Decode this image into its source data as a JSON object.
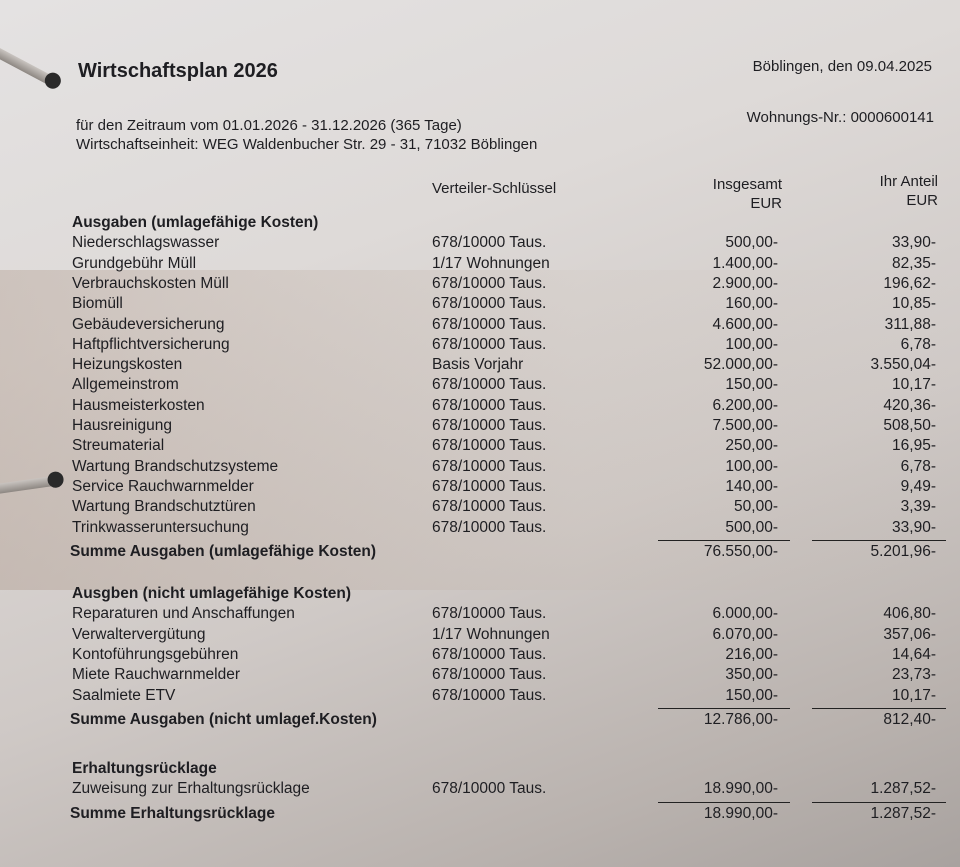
{
  "header": {
    "title": "Wirtschaftsplan 2026",
    "place_date": "Böblingen, den 09.04.2025",
    "period": "für den Zeitraum vom 01.01.2026 - 31.12.2026 (365 Tage)",
    "unit": "Wirtschaftseinheit: WEG Waldenbucher Str. 29 - 31, 71032 Böblingen",
    "flat_no": "Wohnungs-Nr.: 0000600141"
  },
  "columns": {
    "key": "Verteiler-Schlüssel",
    "total": "Insgesamt\nEUR",
    "share": "Ihr Anteil\nEUR"
  },
  "sections": [
    {
      "title": "Ausgaben (umlagefähige Kosten)",
      "rows": [
        {
          "label": "Niederschlagswasser",
          "key": "678/10000 Taus.",
          "total": "500,00-",
          "share": "33,90-"
        },
        {
          "label": "Grundgebühr Müll",
          "key": "1/17 Wohnungen",
          "total": "1.400,00-",
          "share": "82,35-"
        },
        {
          "label": "Verbrauchskosten Müll",
          "key": "678/10000 Taus.",
          "total": "2.900,00-",
          "share": "196,62-"
        },
        {
          "label": "Biomüll",
          "key": "678/10000 Taus.",
          "total": "160,00-",
          "share": "10,85-"
        },
        {
          "label": "Gebäudeversicherung",
          "key": "678/10000 Taus.",
          "total": "4.600,00-",
          "share": "311,88-"
        },
        {
          "label": "Haftpflichtversicherung",
          "key": "678/10000 Taus.",
          "total": "100,00-",
          "share": "6,78-"
        },
        {
          "label": "Heizungskosten",
          "key": "Basis Vorjahr",
          "total": "52.000,00-",
          "share": "3.550,04-"
        },
        {
          "label": "Allgemeinstrom",
          "key": "678/10000 Taus.",
          "total": "150,00-",
          "share": "10,17-"
        },
        {
          "label": "Hausmeisterkosten",
          "key": "678/10000 Taus.",
          "total": "6.200,00-",
          "share": "420,36-"
        },
        {
          "label": "Hausreinigung",
          "key": "678/10000 Taus.",
          "total": "7.500,00-",
          "share": "508,50-"
        },
        {
          "label": "Streumaterial",
          "key": "678/10000 Taus.",
          "total": "250,00-",
          "share": "16,95-"
        },
        {
          "label": "Wartung Brandschutzsysteme",
          "key": "678/10000 Taus.",
          "total": "100,00-",
          "share": "6,78-"
        },
        {
          "label": "Service Rauchwarnmelder",
          "key": "678/10000 Taus.",
          "total": "140,00-",
          "share": "9,49-"
        },
        {
          "label": "Wartung Brandschutztüren",
          "key": "678/10000 Taus.",
          "total": "50,00-",
          "share": "3,39-"
        },
        {
          "label": "Trinkwasseruntersuchung",
          "key": "678/10000 Taus.",
          "total": "500,00-",
          "share": "33,90-"
        }
      ],
      "sum": {
        "label": "Summe Ausgaben (umlagefähige Kosten)",
        "total": "76.550,00-",
        "share": "5.201,96-"
      }
    },
    {
      "title": "Ausgben (nicht umlagefähige Kosten)",
      "rows": [
        {
          "label": "Reparaturen und Anschaffungen",
          "key": "678/10000 Taus.",
          "total": "6.000,00-",
          "share": "406,80-"
        },
        {
          "label": "Verwaltervergütung",
          "key": "1/17 Wohnungen",
          "total": "6.070,00-",
          "share": "357,06-"
        },
        {
          "label": "Kontoführungsgebühren",
          "key": "678/10000 Taus.",
          "total": "216,00-",
          "share": "14,64-"
        },
        {
          "label": "Miete Rauchwarnmelder",
          "key": "678/10000 Taus.",
          "total": "350,00-",
          "share": "23,73-"
        },
        {
          "label": "Saalmiete ETV",
          "key": "678/10000 Taus.",
          "total": "150,00-",
          "share": "10,17-"
        }
      ],
      "sum": {
        "label": "Summe Ausgaben (nicht umlagef.Kosten)",
        "total": "12.786,00-",
        "share": "812,40-"
      }
    },
    {
      "title": "Erhaltungsrücklage",
      "rows": [
        {
          "label": "Zuweisung zur Erhaltungsrücklage",
          "key": "678/10000 Taus.",
          "total": "18.990,00-",
          "share": "1.287,52-"
        }
      ],
      "sum": {
        "label": "Summe Erhaltungsrücklage",
        "total": "18.990,00-",
        "share": "1.287,52-"
      }
    }
  ]
}
